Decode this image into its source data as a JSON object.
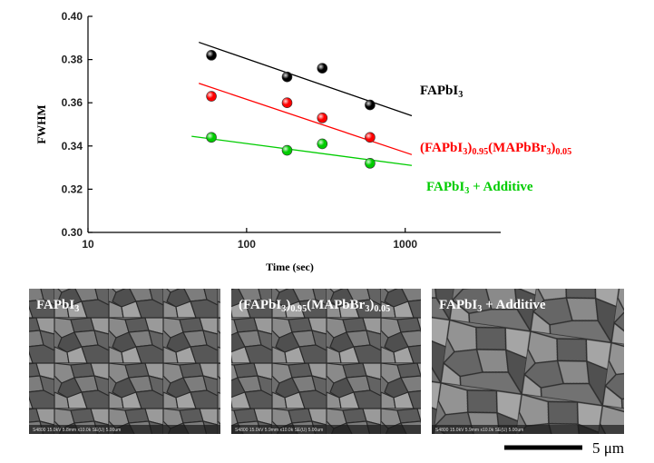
{
  "chart_data": {
    "type": "scatter",
    "x_label": "Time (sec)",
    "y_label": "FWHM",
    "log_x": true,
    "xlim": [
      10,
      4000
    ],
    "xticks": [
      10,
      100,
      1000
    ],
    "ylim": [
      0.3,
      0.4
    ],
    "yticks": [
      {
        "value": 0.3,
        "label": "0.30"
      },
      {
        "value": 0.32,
        "label": "0.32"
      },
      {
        "value": 0.34,
        "label": "0.34"
      },
      {
        "value": 0.36,
        "label": "0.36"
      },
      {
        "value": 0.38,
        "label": "0.38"
      },
      {
        "value": 0.4,
        "label": "0.40"
      }
    ],
    "series": [
      {
        "name": [
          "FAPbI",
          "3"
        ],
        "color": "#000000",
        "x": [
          60,
          180,
          300,
          600
        ],
        "values": [
          0.382,
          0.372,
          0.376,
          0.359
        ],
        "fit": {
          "x": [
            50,
            1100
          ],
          "values": [
            0.388,
            0.354
          ]
        }
      },
      {
        "name": [
          "(FAPbI",
          "3",
          ")",
          "0.95",
          "(MAPbBr",
          "3",
          ")",
          "0.05"
        ],
        "color": "#ff0000",
        "x": [
          60,
          180,
          300,
          600
        ],
        "values": [
          0.363,
          0.36,
          0.353,
          0.344
        ],
        "fit": {
          "x": [
            50,
            1100
          ],
          "values": [
            0.369,
            0.336
          ]
        }
      },
      {
        "name": [
          "FAPbI",
          "3",
          "  + Additive"
        ],
        "color": "#00cc00",
        "x": [
          60,
          180,
          300,
          600
        ],
        "values": [
          0.344,
          0.338,
          0.341,
          0.332
        ],
        "fit": {
          "x": [
            45,
            1100
          ],
          "values": [
            0.3445,
            0.331
          ]
        }
      }
    ]
  },
  "images": [
    {
      "label": [
        "FAPbI",
        "3"
      ],
      "info": "S4800 15.0kV 5.8mm x10.0k SE(U) 5.00um"
    },
    {
      "label": [
        "(FAPbI",
        "3",
        ")",
        "0.95",
        "(MAPbBr",
        "3",
        ")",
        "0.05"
      ],
      "info": "S4800 15.0kV 5.9mm x10.0k SE(U) 5.00um"
    },
    {
      "label": [
        "FAPbI",
        "3",
        "  + Additive"
      ],
      "info": "S4800 15.0kV 5.9mm x10.0k SE(U) 5.00um"
    }
  ],
  "scale_bar": "5 μm"
}
